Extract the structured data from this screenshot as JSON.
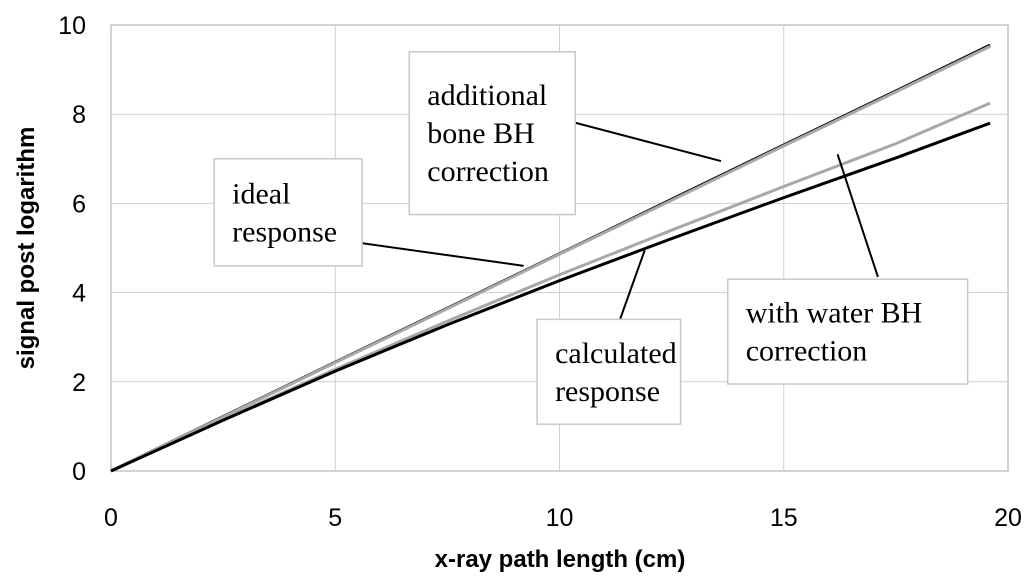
{
  "chart_data": {
    "type": "line",
    "xlabel": "x-ray path length (cm)",
    "ylabel": "signal post logarithm",
    "xlim": [
      0,
      20
    ],
    "ylim": [
      0,
      10
    ],
    "x_ticks": [
      0,
      5,
      10,
      15,
      20
    ],
    "y_ticks": [
      0,
      2,
      4,
      6,
      8,
      10
    ],
    "grid": true,
    "series": [
      {
        "key": "ideal",
        "color": "#000000",
        "x": [
          0,
          2.5,
          5,
          7.5,
          10,
          12.5,
          15,
          17.5,
          19.6
        ],
        "y": [
          0,
          1.22,
          2.44,
          3.65,
          4.87,
          6.09,
          7.31,
          8.52,
          9.55
        ]
      },
      {
        "key": "bone",
        "color": "#a8a8a8",
        "x": [
          0,
          2.5,
          5,
          7.5,
          10,
          12.5,
          15,
          17.5,
          19.6
        ],
        "y": [
          0,
          1.21,
          2.43,
          3.64,
          4.86,
          6.07,
          7.29,
          8.5,
          9.52
        ]
      },
      {
        "key": "water",
        "color": "#a8a8a8",
        "x": [
          0,
          2.5,
          5,
          7.5,
          10,
          12.5,
          15,
          17.5,
          19.6
        ],
        "y": [
          0,
          1.16,
          2.28,
          3.36,
          4.4,
          5.4,
          6.38,
          7.34,
          8.25
        ]
      },
      {
        "key": "calculated",
        "color": "#000000",
        "x": [
          0,
          2.5,
          5,
          7.5,
          10,
          12.5,
          15,
          17.5,
          19.6
        ],
        "y": [
          0,
          1.14,
          2.24,
          3.28,
          4.27,
          5.21,
          6.13,
          7.02,
          7.8
        ]
      }
    ],
    "annotations": [
      {
        "key": "bone",
        "lines": [
          "additional",
          "bone BH",
          "correction"
        ],
        "box_x": [
          6.65,
          10.35
        ],
        "box_y": [
          5.75,
          9.4
        ],
        "leader": {
          "from": [
            8.3,
            8.35
          ],
          "to": [
            13.6,
            6.95
          ]
        }
      },
      {
        "key": "ideal",
        "lines": [
          "ideal",
          "response"
        ],
        "box_x": [
          2.3,
          5.6
        ],
        "box_y": [
          4.6,
          7.0
        ],
        "leader": {
          "from": [
            5.3,
            5.15
          ],
          "to": [
            9.2,
            4.6
          ]
        }
      },
      {
        "key": "water",
        "lines": [
          "with water BH",
          "correction"
        ],
        "box_x": [
          13.75,
          19.1
        ],
        "box_y": [
          1.95,
          4.3
        ],
        "leader": {
          "from": [
            17.1,
            4.35
          ],
          "to": [
            16.2,
            7.1
          ]
        }
      },
      {
        "key": "calculated",
        "lines": [
          "calculated",
          "response"
        ],
        "box_x": [
          9.5,
          12.7
        ],
        "box_y": [
          1.05,
          3.4
        ],
        "leader": {
          "from": [
            11.35,
            3.4
          ],
          "to": [
            11.9,
            4.95
          ]
        }
      }
    ]
  }
}
